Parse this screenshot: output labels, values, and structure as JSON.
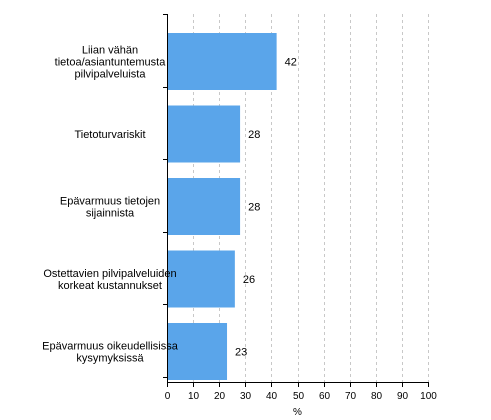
{
  "chart_data": {
    "type": "bar",
    "orientation": "horizontal",
    "categories": [
      [
        "Liian vähän",
        "tietoa/asiantuntemusta",
        "pilvipalveluista"
      ],
      [
        "Tietoturvariskit"
      ],
      [
        "Epävarmuus tietojen",
        "sijainnista"
      ],
      [
        "Ostettavien pilvipalveluiden",
        "korkeat kustannukset"
      ],
      [
        "Epävarmuus oikeudellisissa",
        "kysymyksissä"
      ]
    ],
    "values": [
      42,
      28,
      28,
      26,
      23
    ],
    "data_labels": [
      "42",
      "28",
      "28",
      "26",
      "23"
    ],
    "xlabel": "%",
    "xlim": [
      0,
      100
    ],
    "xticks": [
      0,
      10,
      20,
      30,
      40,
      50,
      60,
      70,
      80,
      90,
      100
    ],
    "xtick_labels": [
      "0",
      "10",
      "20",
      "30",
      "40",
      "50",
      "60",
      "70",
      "80",
      "90",
      "100"
    ],
    "grid": "vertical dashed",
    "legend": "none",
    "bar_color": "#5aa5ea",
    "grid_color": "#c8c8c8",
    "axis_color": "#000000"
  }
}
